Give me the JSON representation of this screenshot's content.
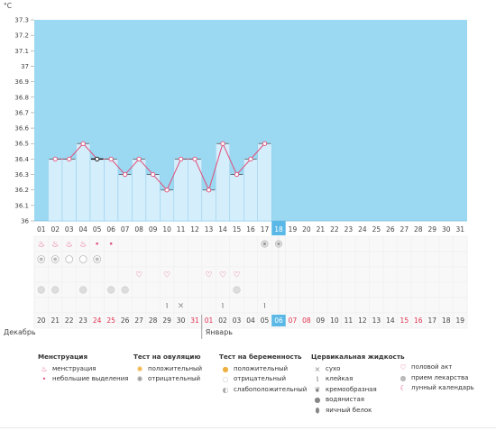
{
  "chart_data": {
    "type": "area",
    "yunit": "°C",
    "yticks": [
      "37.3",
      "37.2",
      "37.1",
      "37",
      "36.9",
      "36.8",
      "36.7",
      "36.6",
      "36.5",
      "36.4",
      "36.3",
      "36.2",
      "36.1",
      "36"
    ],
    "ylim": [
      36,
      37.3
    ],
    "cycle_days": [
      "01",
      "02",
      "03",
      "04",
      "05",
      "06",
      "07",
      "08",
      "09",
      "10",
      "11",
      "12",
      "13",
      "14",
      "15",
      "16",
      "17",
      "18",
      "19",
      "20",
      "21",
      "22",
      "23",
      "24",
      "25",
      "26",
      "27",
      "28",
      "29",
      "30",
      "31"
    ],
    "current_day_index": 17,
    "temperatures": [
      null,
      36.4,
      36.4,
      36.5,
      36.4,
      36.4,
      36.3,
      36.4,
      36.3,
      36.2,
      36.4,
      36.4,
      36.2,
      36.5,
      36.3,
      36.4,
      36.5
    ],
    "temperature_start_index": 1,
    "highlight_point_index": 4,
    "dates": [
      "20",
      "21",
      "22",
      "23",
      "24",
      "25",
      "26",
      "27",
      "28",
      "29",
      "30",
      "31",
      "01",
      "02",
      "03",
      "04",
      "05",
      "06",
      "07",
      "08",
      "09",
      "10",
      "11",
      "12",
      "13",
      "14",
      "15",
      "16",
      "17",
      "18",
      "19"
    ],
    "red_date_indices": [
      4,
      5,
      11,
      12,
      18,
      19,
      26,
      27
    ],
    "month_labels": [
      {
        "text": "Декабрь",
        "index": 0
      },
      {
        "text": "Январь",
        "index": 12
      }
    ],
    "colors": {
      "area_bg": "#9bd8f2",
      "bar_fill": "#d4eefc",
      "bar_stroke": "#8ecbea",
      "line": "#e0507a",
      "highlight": "#5ab8e6",
      "red_text": "#e0304f",
      "gray_text": "#444"
    }
  },
  "symbol_rows": {
    "menstruation": [
      "flame",
      "flame",
      "flame",
      "flame",
      "drop",
      "drop"
    ],
    "ovulation": {
      "positive_days": [],
      "negative_days": [
        17,
        18
      ]
    },
    "pregnancy": [
      "weak",
      "weak",
      "neg",
      "neg",
      "weak"
    ],
    "intercourse_days": [
      8,
      10,
      13,
      14,
      15
    ],
    "medication_days": [
      1,
      2,
      4,
      6,
      7,
      15
    ],
    "fluid": [
      {
        "day": 10,
        "type": "sticky"
      },
      {
        "day": 11,
        "type": "dry"
      },
      {
        "day": 14,
        "type": "sticky"
      },
      {
        "day": 17,
        "type": "sticky"
      }
    ]
  },
  "legend": {
    "menstruation": {
      "title": "Менструация",
      "items": [
        {
          "icon": "flame-icon",
          "label": "менструация"
        },
        {
          "icon": "drop-icon",
          "label": "небольшие выделения"
        }
      ]
    },
    "ovulation": {
      "title": "Тест на овуляцию",
      "items": [
        {
          "icon": "sun-positive-icon",
          "label": "положительный"
        },
        {
          "icon": "sun-negative-icon",
          "label": "отрицательный"
        }
      ]
    },
    "pregnancy": {
      "title": "Тест на беременность",
      "items": [
        {
          "icon": "circle-positive-icon",
          "label": "положительный"
        },
        {
          "icon": "circle-negative-icon",
          "label": "отрицательный"
        },
        {
          "icon": "circle-weak-icon",
          "label": "слабоположительный"
        }
      ]
    },
    "fluid": {
      "title": "Цервикальная жидкость",
      "items": [
        {
          "icon": "cross-icon",
          "label": "сухо"
        },
        {
          "icon": "sticky-icon",
          "label": "клейкая"
        },
        {
          "icon": "creamy-icon",
          "label": "кремообразная"
        },
        {
          "icon": "watery-icon",
          "label": "водянистая"
        },
        {
          "icon": "eggwhite-icon",
          "label": "яичный белок"
        }
      ]
    },
    "other": {
      "items": [
        {
          "icon": "heart-icon",
          "label": "половой акт"
        },
        {
          "icon": "pill-icon",
          "label": "прием лекарства"
        },
        {
          "icon": "moon-icon",
          "label": "лунный календарь"
        }
      ]
    }
  }
}
